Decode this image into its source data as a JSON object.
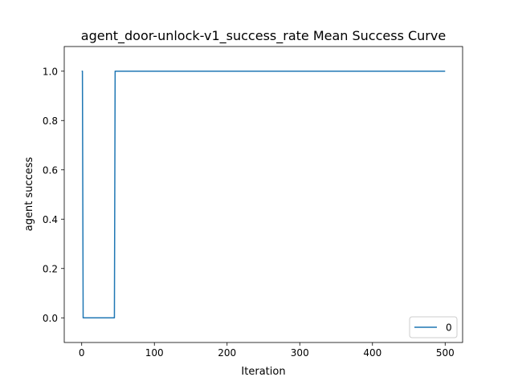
{
  "chart_data": {
    "type": "line",
    "title": "agent_door-unlock-v1_success_rate Mean Success Curve",
    "xlabel": "Iteration",
    "ylabel": "agent success",
    "xlim": [
      -24,
      524
    ],
    "ylim": [
      -0.1,
      1.1
    ],
    "xticks": [
      0,
      100,
      200,
      300,
      400,
      500
    ],
    "yticks": [
      0.0,
      0.2,
      0.4,
      0.6,
      0.8,
      1.0
    ],
    "xtick_labels": [
      "0",
      "100",
      "200",
      "300",
      "400",
      "500"
    ],
    "ytick_labels": [
      "0.0",
      "0.2",
      "0.4",
      "0.6",
      "0.8",
      "1.0"
    ],
    "grid": false,
    "legend_position": "lower-right",
    "series": [
      {
        "name": "0",
        "color": "#1f77b4",
        "x": [
          0,
          1,
          2,
          3,
          45,
          46,
          500
        ],
        "y": [
          1.0,
          1.0,
          0.0,
          0.0,
          0.0,
          1.0,
          1.0
        ]
      }
    ]
  }
}
